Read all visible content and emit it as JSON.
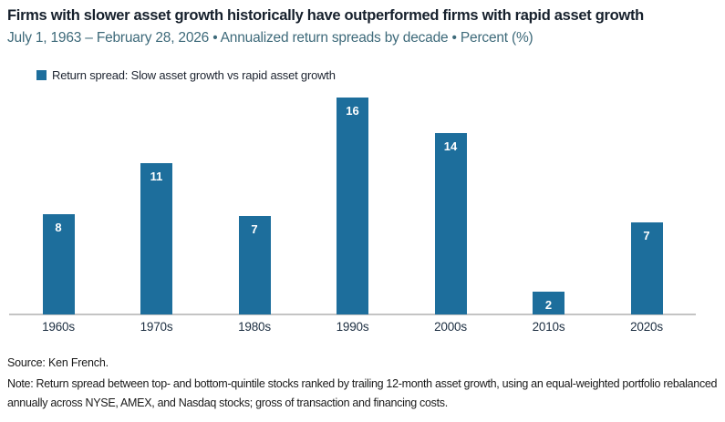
{
  "page": {
    "title": "Firms with slower asset growth historically have outperformed firms with rapid asset growth",
    "subtitle": "July 1, 1963 – February 28, 2026 • Annualized return spreads by decade • Percent (%)"
  },
  "legend": {
    "series_label": "Return spread: Slow asset growth vs rapid asset growth"
  },
  "chart_data": {
    "type": "bar",
    "title": "Firms with slower asset growth historically have outperformed firms with rapid asset growth",
    "subtitle": "July 1, 1963 – February 28, 2026 • Annualized return spreads by decade • Percent (%)",
    "categories": [
      "1960s",
      "1970s",
      "1980s",
      "1990s",
      "2000s",
      "2010s",
      "2020s"
    ],
    "series": [
      {
        "name": "Return spread: Slow asset growth vs rapid asset growth",
        "values": [
          8,
          11,
          7,
          16,
          14,
          2,
          7
        ]
      }
    ],
    "values_precise_estimated": [
      7.4,
      11.2,
      7.3,
      16.0,
      13.4,
      1.7,
      6.8
    ],
    "xlabel": "",
    "ylabel": "Percent (%)",
    "ylim": [
      0,
      16.5
    ],
    "y_axis_visible": false,
    "gridlines": false,
    "value_labels_position": "inside-top",
    "legend_position": "top-left"
  },
  "footer": {
    "source": "Source: Ken French.",
    "note": "Note: Return spread between top- and bottom-quintile stocks ranked by trailing 12-month asset growth, using an equal-weighted portfolio rebalanced annually across NYSE, AMEX, and Nasdaq stocks; gross of transaction and financing costs."
  },
  "colors": {
    "bar": "#1d6e9c",
    "title": "#16202c",
    "subtitle": "#3e6a7a",
    "axis_line": "#c4c4c4",
    "x_label": "#1d2f42",
    "bar_value_text": "#ffffff",
    "footer_text": "#1a1a1a",
    "background": "#ffffff"
  }
}
